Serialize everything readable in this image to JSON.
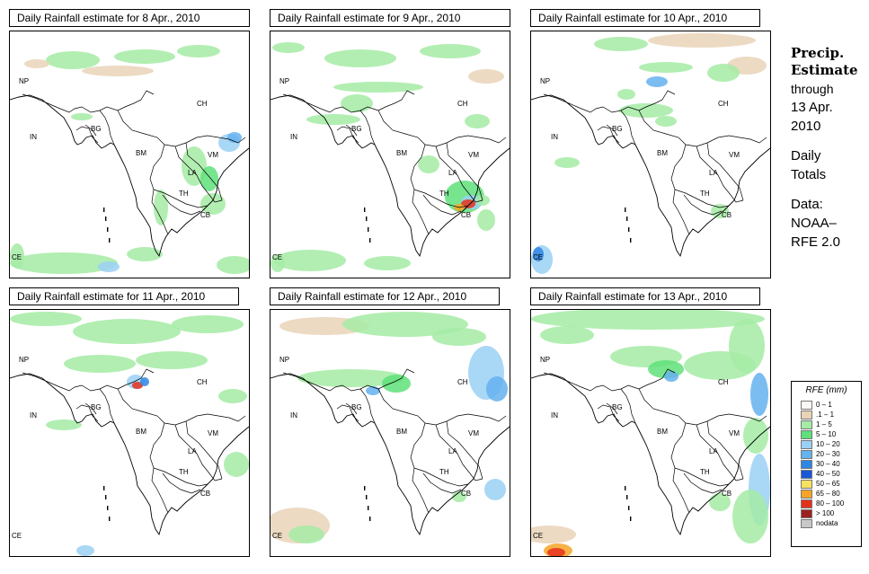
{
  "panels": [
    {
      "title": "Daily Rainfall estimate for  8 Apr., 2010"
    },
    {
      "title": "Daily Rainfall estimate for  9 Apr., 2010"
    },
    {
      "title": "Daily Rainfall estimate for  10 Apr., 2010"
    },
    {
      "title": "Daily Rainfall estimate for  11 Apr., 2010"
    },
    {
      "title": "Daily Rainfall estimate for  12 Apr., 2010"
    },
    {
      "title": "Daily Rainfall estimate for  13 Apr., 2010"
    }
  ],
  "country_labels": {
    "np": "NP",
    "ch": "CH",
    "in": "IN",
    "bg": "BG",
    "bm": "BM",
    "vm": "VM",
    "la": "LA",
    "th": "TH",
    "cb": "CB",
    "ce": "CE"
  },
  "side": {
    "title_line1": "Precip.",
    "title_line2": "Estimate",
    "through": "through",
    "date_line1": "13 Apr.",
    "date_line2": "2010",
    "totals_line1": "Daily",
    "totals_line2": "Totals",
    "data_line1": "Data:",
    "data_line2": "NOAA–",
    "data_line3": "RFE 2.0"
  },
  "legend": {
    "title": "RFE (mm)",
    "items": [
      {
        "label": "0 – 1",
        "color": "#fbf7f4"
      },
      {
        "label": ".1 – 1",
        "color": "#ead4b8"
      },
      {
        "label": "1 – 5",
        "color": "#a4eba4"
      },
      {
        "label": "5 – 10",
        "color": "#5fe07a"
      },
      {
        "label": "10 – 20",
        "color": "#9ad0f5"
      },
      {
        "label": "20 – 30",
        "color": "#64b2ee"
      },
      {
        "label": "30 – 40",
        "color": "#2f86e4"
      },
      {
        "label": "40 – 50",
        "color": "#1858d6"
      },
      {
        "label": "50 – 65",
        "color": "#f8e162"
      },
      {
        "label": "65 – 80",
        "color": "#f6a428"
      },
      {
        "label": "80 – 100",
        "color": "#e5301c"
      },
      {
        "label": "> 100",
        "color": "#9c2222"
      },
      {
        "label": "nodata",
        "color": "#c8c8c8"
      }
    ]
  }
}
